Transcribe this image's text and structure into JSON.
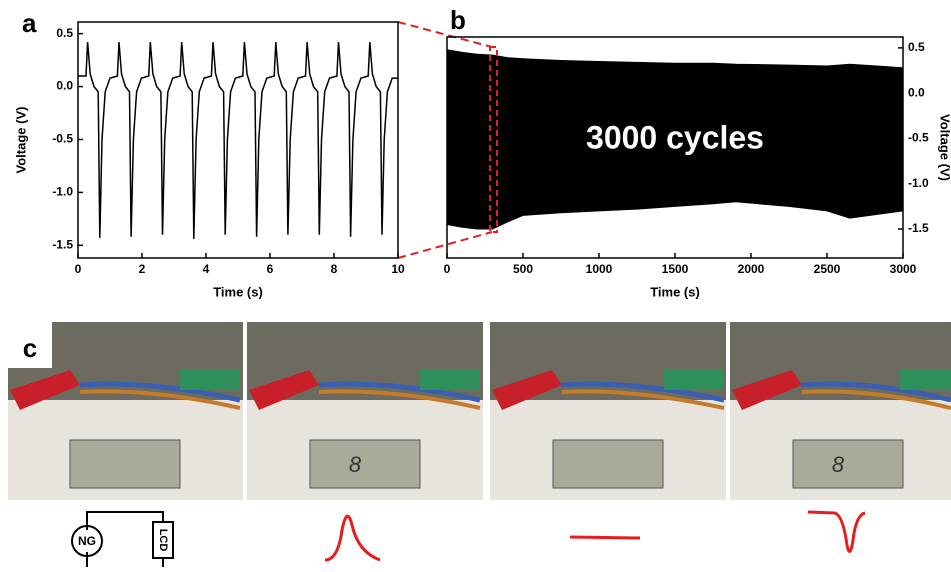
{
  "chart_data": [
    {
      "type": "line",
      "panel_label": "a",
      "x_label": "Time (s)",
      "y_label": "Voltage (V)",
      "color": "#000000",
      "xlim": [
        0,
        10
      ],
      "xticks": [
        0,
        2,
        4,
        6,
        8,
        10
      ],
      "ylim": [
        -1.62,
        0.61
      ],
      "yticks": [
        0.5,
        {
          "value": 0,
          "label": "0.0"
        },
        -0.5,
        {
          "value": -1,
          "label": "-1.0"
        },
        -1.5
      ],
      "x": [
        0,
        0.25,
        0.3,
        0.38,
        0.5,
        0.63,
        0.68,
        0.75,
        0.85,
        1.0,
        1.23,
        1.28,
        1.36,
        1.48,
        1.61,
        1.66,
        1.73,
        1.83,
        1.98,
        2.21,
        2.26,
        2.34,
        2.46,
        2.59,
        2.64,
        2.71,
        2.81,
        2.96,
        3.19,
        3.24,
        3.32,
        3.44,
        3.57,
        3.62,
        3.69,
        3.79,
        3.94,
        4.17,
        4.22,
        4.3,
        4.42,
        4.55,
        4.6,
        4.67,
        4.77,
        4.92,
        5.15,
        5.2,
        5.28,
        5.4,
        5.53,
        5.58,
        5.65,
        5.75,
        5.9,
        6.13,
        6.18,
        6.26,
        6.38,
        6.51,
        6.56,
        6.63,
        6.73,
        6.88,
        7.11,
        7.16,
        7.24,
        7.36,
        7.49,
        7.54,
        7.61,
        7.71,
        7.86,
        8.09,
        8.14,
        8.22,
        8.34,
        8.47,
        8.52,
        8.59,
        8.69,
        8.84,
        9.07,
        9.12,
        9.2,
        9.32,
        9.45,
        9.5,
        9.57,
        9.67,
        9.82,
        10
      ],
      "values": [
        0.1,
        0.1,
        0.42,
        0.12,
        0.0,
        -0.05,
        -1.43,
        -0.5,
        -0.05,
        0.08,
        0.1,
        0.42,
        0.12,
        0.0,
        -0.05,
        -1.42,
        -0.5,
        -0.05,
        0.08,
        0.1,
        0.42,
        0.12,
        0.0,
        -0.05,
        -1.4,
        -0.5,
        -0.05,
        0.08,
        0.1,
        0.42,
        0.12,
        0.0,
        -0.05,
        -1.44,
        -0.5,
        -0.05,
        0.08,
        0.1,
        0.42,
        0.12,
        0.0,
        -0.05,
        -1.4,
        -0.5,
        -0.05,
        0.08,
        0.1,
        0.42,
        0.12,
        0.0,
        -0.05,
        -1.42,
        -0.5,
        -0.05,
        0.08,
        0.1,
        0.42,
        0.12,
        0.0,
        -0.05,
        -1.4,
        -0.5,
        -0.05,
        0.08,
        0.1,
        0.42,
        0.12,
        0.0,
        -0.05,
        -1.4,
        -0.5,
        -0.05,
        0.08,
        0.1,
        0.42,
        0.12,
        0.0,
        -0.05,
        -1.42,
        -0.5,
        -0.05,
        0.08,
        0.1,
        0.42,
        0.12,
        0.0,
        -0.05,
        -1.4,
        -0.5,
        -0.05,
        0.08,
        0.08
      ]
    },
    {
      "type": "area",
      "panel_label": "b",
      "x_label": "Time (s)",
      "y_label": "Voltage (V)",
      "annotation": "3000 cycles",
      "color": "#000000",
      "xlim": [
        0,
        3000
      ],
      "xticks": [
        0,
        500,
        1000,
        1500,
        2000,
        2500,
        3000
      ],
      "ylim": [
        -1.82,
        0.62
      ],
      "yticks": [
        0.5,
        {
          "value": 0,
          "label": "0.0"
        },
        -0.5,
        {
          "value": -1,
          "label": "-1.0"
        },
        -1.5
      ],
      "x": [
        0,
        100,
        200,
        300,
        400,
        500,
        750,
        1000,
        1250,
        1500,
        1750,
        1900,
        2250,
        2500,
        2650,
        3000
      ],
      "upper": [
        0.48,
        0.45,
        0.43,
        0.42,
        0.39,
        0.38,
        0.36,
        0.35,
        0.34,
        0.33,
        0.33,
        0.32,
        0.31,
        0.3,
        0.32,
        0.28
      ],
      "lower": [
        -1.45,
        -1.48,
        -1.5,
        -1.5,
        -1.42,
        -1.35,
        -1.32,
        -1.3,
        -1.28,
        -1.25,
        -1.22,
        -1.2,
        -1.25,
        -1.3,
        -1.38,
        -1.3
      ]
    }
  ],
  "panel_c": {
    "label": "c",
    "lcd_readouts": [
      "8",
      "8"
    ],
    "circuit": {
      "source": "NG",
      "load": "LCD"
    }
  }
}
